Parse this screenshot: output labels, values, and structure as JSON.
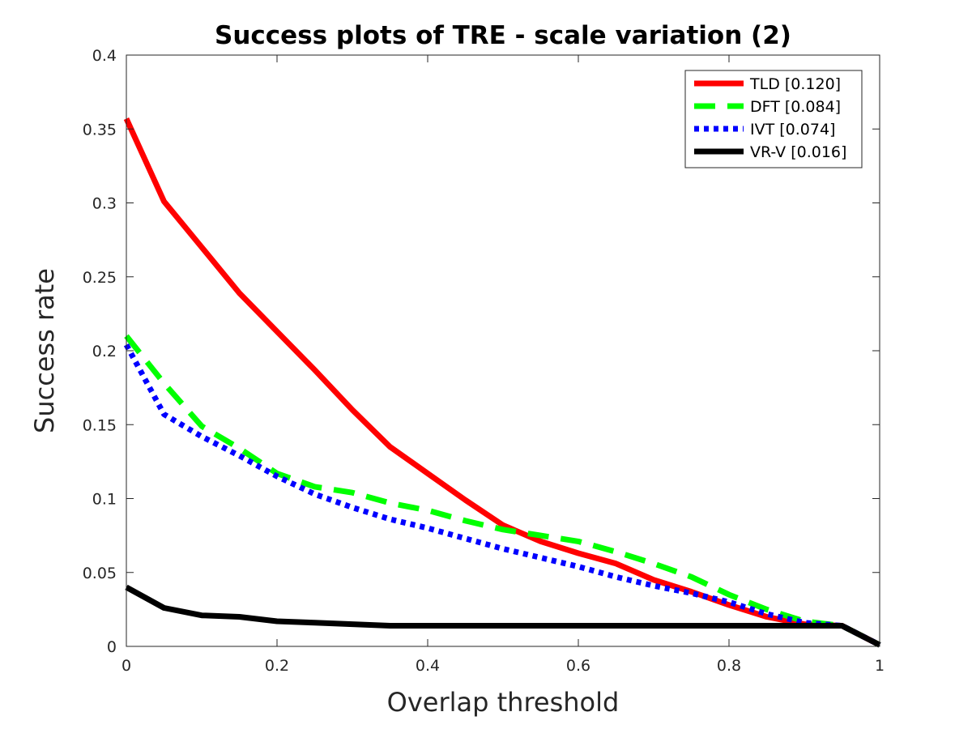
{
  "chart_data": {
    "type": "line",
    "title": "Success plots of TRE - scale variation (2)",
    "xlabel": "Overlap threshold",
    "ylabel": "Success rate",
    "xlim": [
      0,
      1
    ],
    "ylim": [
      0,
      0.4
    ],
    "xticks": [
      "0",
      "0.2",
      "0.4",
      "0.6",
      "0.8",
      "1"
    ],
    "yticks": [
      "0",
      "0.05",
      "0.1",
      "0.15",
      "0.2",
      "0.25",
      "0.3",
      "0.35",
      "0.4"
    ],
    "grid": false,
    "legend_position": "top-right",
    "x": [
      0,
      0.05,
      0.1,
      0.15,
      0.2,
      0.25,
      0.3,
      0.35,
      0.4,
      0.45,
      0.5,
      0.55,
      0.6,
      0.65,
      0.7,
      0.75,
      0.8,
      0.85,
      0.9,
      0.95,
      1.0
    ],
    "series": [
      {
        "name": "TLD [0.120]",
        "color": "#ff0000",
        "style": "solid",
        "values": [
          0.357,
          0.301,
          0.27,
          0.239,
          0.213,
          0.187,
          0.16,
          0.135,
          0.117,
          0.099,
          0.082,
          0.071,
          0.063,
          0.056,
          0.045,
          0.037,
          0.028,
          0.02,
          0.015,
          0.014,
          0.001
        ]
      },
      {
        "name": "DFT [0.084]",
        "color": "#00ff00",
        "style": "dashed",
        "values": [
          0.21,
          0.178,
          0.149,
          0.134,
          0.117,
          0.108,
          0.104,
          0.097,
          0.092,
          0.085,
          0.079,
          0.075,
          0.071,
          0.064,
          0.056,
          0.047,
          0.035,
          0.025,
          0.017,
          0.014,
          0.001
        ]
      },
      {
        "name": "IVT [0.074]",
        "color": "#0000ff",
        "style": "dotted",
        "values": [
          0.204,
          0.157,
          0.142,
          0.129,
          0.115,
          0.103,
          0.094,
          0.086,
          0.08,
          0.073,
          0.066,
          0.06,
          0.054,
          0.047,
          0.041,
          0.036,
          0.03,
          0.022,
          0.016,
          0.014,
          0.001
        ]
      },
      {
        "name": "VR-V [0.016]",
        "color": "#000000",
        "style": "solid",
        "values": [
          0.04,
          0.026,
          0.021,
          0.02,
          0.017,
          0.016,
          0.015,
          0.014,
          0.014,
          0.014,
          0.014,
          0.014,
          0.014,
          0.014,
          0.014,
          0.014,
          0.014,
          0.014,
          0.014,
          0.014,
          0.001
        ]
      }
    ]
  }
}
